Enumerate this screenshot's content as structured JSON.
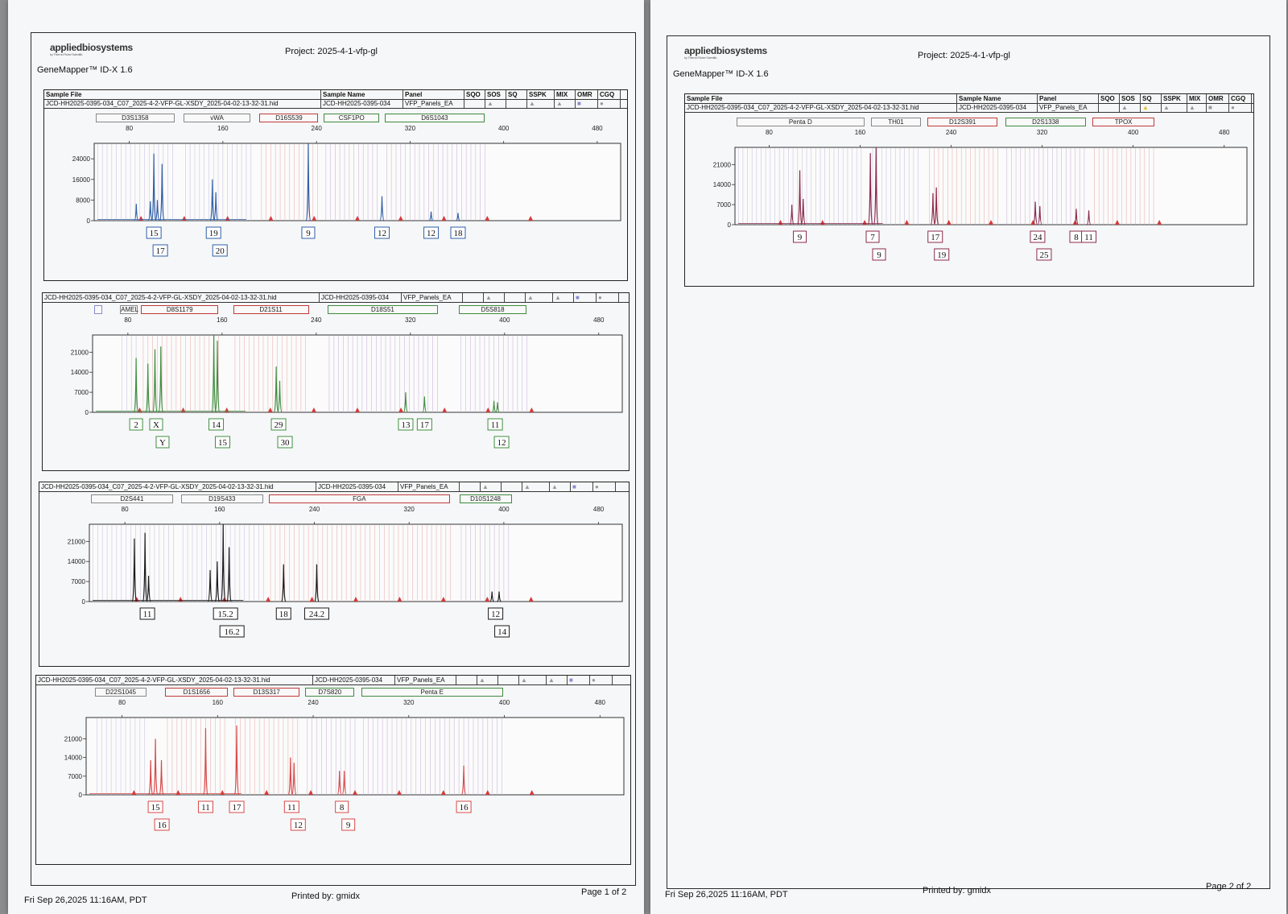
{
  "page1": {
    "brand": "appliedbiosystems",
    "brand_sub": "by Thermo Fisher Scientific",
    "project": "Project: 2025-4-1-vfp-gl",
    "app": "GeneMapper™ ID-X  1.6",
    "footer_date": "Fri Sep 26,2025 11:16AM, PDT",
    "footer_printed": "Printed by: gmidx",
    "footer_page": "Page 1 of 2"
  },
  "page2": {
    "brand": "appliedbiosystems",
    "brand_sub": "by Thermo Fisher Scientific",
    "project": "Project: 2025-4-1-vfp-gl",
    "app": "GeneMapper™ ID-X  1.6",
    "footer_date": "Fri Sep 26,2025 11:16AM, PDT",
    "footer_printed": "Printed by: gmidx",
    "footer_page": "Page 2 of 2"
  },
  "header": {
    "sample_file_label": "Sample File",
    "sample_name_label": "Sample Name",
    "panel_label": "Panel",
    "sqo": "SQO",
    "sos": "SOS",
    "sq": "SQ",
    "sspk": "SSPK",
    "mix": "MIX",
    "omr": "OMR",
    "cgq": "CGQ",
    "sample_file": "JCD-HH2025-0395-034_C07_2025-4-2-VFP-GL-XSDY_2025-04-02-13-32-31.hid",
    "sample_name": "JCD-HH2025-0395-034",
    "panel": "VFP_Panels_EA"
  },
  "chart_data": [
    {
      "type": "line",
      "dye": "blue",
      "color": "#2f5fa8",
      "x_ticks": [
        80,
        160,
        240,
        320,
        400,
        480
      ],
      "xlim": [
        50,
        500
      ],
      "y_ticks": [
        0,
        8000,
        16000,
        24000
      ],
      "ylim": [
        0,
        30000
      ],
      "loci": [
        {
          "name": "D3S1358",
          "range": [
            50,
            120
          ],
          "style": "gray"
        },
        {
          "name": "vWA",
          "range": [
            125,
            185
          ],
          "style": "gray"
        },
        {
          "name": "D16S539",
          "range": [
            190,
            243
          ],
          "style": "red"
        },
        {
          "name": "CSF1PO",
          "range": [
            245,
            295
          ],
          "style": "green"
        },
        {
          "name": "D6S1043",
          "range": [
            297,
            385
          ],
          "style": "green"
        }
      ],
      "peaks": [
        {
          "x": 86,
          "y": 6500
        },
        {
          "x": 98,
          "y": 7500
        },
        {
          "x": 101,
          "y": 26000
        },
        {
          "x": 104,
          "y": 8000
        },
        {
          "x": 108,
          "y": 22000
        },
        {
          "x": 151,
          "y": 16000
        },
        {
          "x": 154,
          "y": 11000
        },
        {
          "x": 233,
          "y": 30000
        },
        {
          "x": 296,
          "y": 9500
        },
        {
          "x": 338,
          "y": 3500
        },
        {
          "x": 361,
          "y": 3000
        }
      ],
      "labels": [
        {
          "x": 101,
          "rows": [
            "15",
            "17"
          ]
        },
        {
          "x": 152,
          "rows": [
            "19",
            "20"
          ]
        },
        {
          "x": 233,
          "rows": [
            "9"
          ]
        },
        {
          "x": 296,
          "rows": [
            "12"
          ]
        },
        {
          "x": 338,
          "rows": [
            "12"
          ]
        },
        {
          "x": 361,
          "rows": [
            "18"
          ]
        }
      ]
    },
    {
      "type": "line",
      "dye": "green",
      "color": "#3f8f3f",
      "x_ticks": [
        80,
        160,
        240,
        320,
        400,
        480
      ],
      "xlim": [
        50,
        500
      ],
      "y_ticks": [
        0,
        7000,
        14000,
        21000
      ],
      "ylim": [
        0,
        27000
      ],
      "loci": [
        {
          "name": "",
          "range": [
            50,
            58
          ],
          "style": "blank"
        },
        {
          "name": "AMEL",
          "range": [
            72,
            90
          ],
          "style": "gray"
        },
        {
          "name": "D8S1179",
          "range": [
            90,
            158
          ],
          "style": "red"
        },
        {
          "name": "D21S11",
          "range": [
            168,
            235
          ],
          "style": "red"
        },
        {
          "name": "D18S51",
          "range": [
            248,
            345
          ],
          "style": "green"
        },
        {
          "name": "D5S818",
          "range": [
            360,
            420
          ],
          "style": "green"
        }
      ],
      "peaks": [
        {
          "x": 87,
          "y": 19000
        },
        {
          "x": 97,
          "y": 17000
        },
        {
          "x": 103,
          "y": 22000
        },
        {
          "x": 108,
          "y": 23000
        },
        {
          "x": 153,
          "y": 27000
        },
        {
          "x": 156,
          "y": 25000
        },
        {
          "x": 206,
          "y": 16000
        },
        {
          "x": 209,
          "y": 11000
        },
        {
          "x": 316,
          "y": 7000
        },
        {
          "x": 332,
          "y": 5500
        },
        {
          "x": 391,
          "y": 4000
        },
        {
          "x": 394,
          "y": 3500
        }
      ],
      "labels": [
        {
          "x": 87,
          "rows": [
            "2"
          ]
        },
        {
          "x": 104,
          "rows": [
            "X",
            "Y"
          ]
        },
        {
          "x": 155,
          "rows": [
            "14",
            "15"
          ]
        },
        {
          "x": 208,
          "rows": [
            "29",
            "30"
          ]
        },
        {
          "x": 316,
          "rows": [
            "13"
          ]
        },
        {
          "x": 332,
          "rows": [
            "17"
          ]
        },
        {
          "x": 392,
          "rows": [
            "11",
            "12"
          ]
        }
      ]
    },
    {
      "type": "line",
      "dye": "black",
      "color": "#1a1a1a",
      "x_ticks": [
        80,
        160,
        240,
        320,
        400,
        480
      ],
      "xlim": [
        50,
        500
      ],
      "y_ticks": [
        0,
        7000,
        14000,
        21000
      ],
      "ylim": [
        0,
        27000
      ],
      "loci": [
        {
          "name": "D2S441",
          "range": [
            50,
            122
          ],
          "style": "gray"
        },
        {
          "name": "D19S433",
          "range": [
            126,
            198
          ],
          "style": "gray"
        },
        {
          "name": "FGA",
          "range": [
            200,
            356
          ],
          "style": "red"
        },
        {
          "name": "D10S1248",
          "range": [
            361,
            408
          ],
          "style": "green"
        }
      ],
      "peaks": [
        {
          "x": 88,
          "y": 22000
        },
        {
          "x": 97,
          "y": 24000
        },
        {
          "x": 100,
          "y": 9000
        },
        {
          "x": 152,
          "y": 11000
        },
        {
          "x": 158,
          "y": 14000
        },
        {
          "x": 163,
          "y": 27000
        },
        {
          "x": 168,
          "y": 19000
        },
        {
          "x": 214,
          "y": 13000
        },
        {
          "x": 242,
          "y": 13000
        },
        {
          "x": 390,
          "y": 3500
        },
        {
          "x": 396,
          "y": 3500
        }
      ],
      "labels": [
        {
          "x": 99,
          "rows": [
            "11"
          ]
        },
        {
          "x": 165,
          "rows": [
            "15.2",
            "16.2"
          ]
        },
        {
          "x": 214,
          "rows": [
            "18"
          ]
        },
        {
          "x": 242,
          "rows": [
            "24.2"
          ]
        },
        {
          "x": 393,
          "rows": [
            "12",
            "14"
          ]
        }
      ]
    },
    {
      "type": "line",
      "dye": "red",
      "color": "#d84848",
      "x_ticks": [
        80,
        160,
        240,
        320,
        400,
        480
      ],
      "xlim": [
        50,
        500
      ],
      "y_ticks": [
        0,
        7000,
        14000,
        21000
      ],
      "ylim": [
        0,
        29000
      ],
      "loci": [
        {
          "name": "D22S1045",
          "range": [
            56,
            102
          ],
          "style": "gray"
        },
        {
          "name": "D1S1656",
          "range": [
            115,
            170
          ],
          "style": "red"
        },
        {
          "name": "D13S317",
          "range": [
            172,
            230
          ],
          "style": "red"
        },
        {
          "name": "D7S820",
          "range": [
            232,
            276
          ],
          "style": "green"
        },
        {
          "name": "Penta E",
          "range": [
            279,
            400
          ],
          "style": "green"
        }
      ],
      "peaks": [
        {
          "x": 104,
          "y": 13000
        },
        {
          "x": 108,
          "y": 21000
        },
        {
          "x": 113,
          "y": 13000
        },
        {
          "x": 150,
          "y": 25000
        },
        {
          "x": 176,
          "y": 26000
        },
        {
          "x": 221,
          "y": 14000
        },
        {
          "x": 224,
          "y": 12000
        },
        {
          "x": 262,
          "y": 9000
        },
        {
          "x": 266,
          "y": 9000
        },
        {
          "x": 366,
          "y": 11000
        }
      ],
      "labels": [
        {
          "x": 108,
          "rows": [
            "15",
            "16"
          ]
        },
        {
          "x": 150,
          "rows": [
            "11"
          ]
        },
        {
          "x": 176,
          "rows": [
            "17"
          ]
        },
        {
          "x": 222,
          "rows": [
            "11",
            "12"
          ]
        },
        {
          "x": 264,
          "rows": [
            "8",
            "9"
          ]
        },
        {
          "x": 366,
          "rows": [
            "16"
          ]
        }
      ]
    },
    {
      "type": "line",
      "dye": "purple",
      "color": "#8a2a4a",
      "x_ticks": [
        80,
        160,
        240,
        320,
        400,
        480
      ],
      "xlim": [
        50,
        500
      ],
      "y_ticks": [
        0,
        7000,
        14000,
        21000
      ],
      "ylim": [
        0,
        27000
      ],
      "loci": [
        {
          "name": "Penta D",
          "range": [
            50,
            165
          ],
          "style": "gray"
        },
        {
          "name": "TH01",
          "range": [
            168,
            215
          ],
          "style": "gray"
        },
        {
          "name": "D12S391",
          "range": [
            218,
            282
          ],
          "style": "red"
        },
        {
          "name": "D2S1338",
          "range": [
            286,
            360
          ],
          "style": "green"
        },
        {
          "name": "TPOX",
          "range": [
            363,
            420
          ],
          "style": "red"
        }
      ],
      "peaks": [
        {
          "x": 100,
          "y": 7000
        },
        {
          "x": 107,
          "y": 19000
        },
        {
          "x": 110,
          "y": 9000
        },
        {
          "x": 169,
          "y": 25000
        },
        {
          "x": 174,
          "y": 27000
        },
        {
          "x": 224,
          "y": 11000
        },
        {
          "x": 227,
          "y": 13000
        },
        {
          "x": 314,
          "y": 8000
        },
        {
          "x": 318,
          "y": 6500
        },
        {
          "x": 350,
          "y": 5500
        },
        {
          "x": 361,
          "y": 5000
        }
      ],
      "labels": [
        {
          "x": 107,
          "rows": [
            "9"
          ]
        },
        {
          "x": 171,
          "rows": [
            "7",
            "9"
          ]
        },
        {
          "x": 226,
          "rows": [
            "17",
            "19"
          ]
        },
        {
          "x": 316,
          "rows": [
            "24",
            "25"
          ]
        },
        {
          "x": 350,
          "rows": [
            "8"
          ]
        },
        {
          "x": 361,
          "rows": [
            "11"
          ]
        }
      ]
    }
  ]
}
